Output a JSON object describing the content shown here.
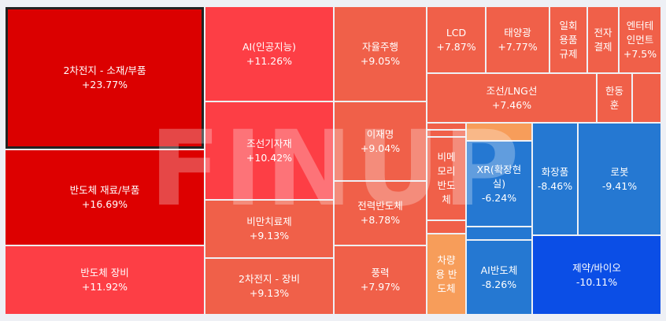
{
  "watermark": "FINUP",
  "chart_data": {
    "type": "treemap",
    "cells": [
      {
        "name": "2차전지 - 소재/부품",
        "value": "+23.77%",
        "color": "#db0000",
        "selected": true
      },
      {
        "name": "반도체 재료/부품",
        "value": "+16.69%",
        "color": "#dd0000"
      },
      {
        "name": "반도체 장비",
        "value": "+11.92%",
        "color": "#fd3e45"
      },
      {
        "name": "AI(인공지능)",
        "value": "+11.26%",
        "color": "#fd3e45"
      },
      {
        "name": "조선기자재",
        "value": "+10.42%",
        "color": "#fd3e45"
      },
      {
        "name": "비만치료제",
        "value": "+9.13%",
        "color": "#f06049"
      },
      {
        "name": "2차전지 - 장비",
        "value": "+9.13%",
        "color": "#f06049"
      },
      {
        "name": "자율주행",
        "value": "+9.05%",
        "color": "#f06049"
      },
      {
        "name": "이재명",
        "value": "+9.04%",
        "color": "#f06049"
      },
      {
        "name": "전력반도체",
        "value": "+8.78%",
        "color": "#f06049"
      },
      {
        "name": "풍력",
        "value": "+7.97%",
        "color": "#f06049"
      },
      {
        "name": "LCD",
        "value": "+7.87%",
        "color": "#f06049"
      },
      {
        "name": "태양광",
        "value": "+7.77%",
        "color": "#f06049"
      },
      {
        "name": "일회\n용품\n규제",
        "value": "",
        "color": "#f06049"
      },
      {
        "name": "전자\n결제",
        "value": "",
        "color": "#f06049"
      },
      {
        "name": "엔터테\n인먼트",
        "value": "+7.5%",
        "color": "#f06049"
      },
      {
        "name": "조선/LNG선",
        "value": "+7.46%",
        "color": "#f06049"
      },
      {
        "name": "한동\n훈",
        "value": "",
        "color": "#f06049"
      },
      {
        "name": "",
        "value": "",
        "color": "#f06049"
      },
      {
        "name": "",
        "value": "",
        "color": "#f06049"
      },
      {
        "name": "",
        "value": "",
        "color": "#f06049"
      },
      {
        "name": "비메\n모리\n반도\n체",
        "value": "",
        "color": "#f06049"
      },
      {
        "name": "",
        "value": "",
        "color": "#f06049"
      },
      {
        "name": "차량\n용 반\n도체",
        "value": "",
        "color": "#f79d5a"
      },
      {
        "name": "",
        "value": "",
        "color": "#f79d5a"
      },
      {
        "name": "XR(확장현\n실)",
        "value": "-6.24%",
        "color": "#2578d2"
      },
      {
        "name": "",
        "value": "",
        "color": "#2578d2"
      },
      {
        "name": "AI반도체",
        "value": "-8.26%",
        "color": "#2578d2"
      },
      {
        "name": "화장품",
        "value": "-8.46%",
        "color": "#2578d2"
      },
      {
        "name": "로봇",
        "value": "-9.41%",
        "color": "#2578d2"
      },
      {
        "name": "제약/바이오",
        "value": "-10.11%",
        "color": "#0b4ee6"
      }
    ]
  }
}
